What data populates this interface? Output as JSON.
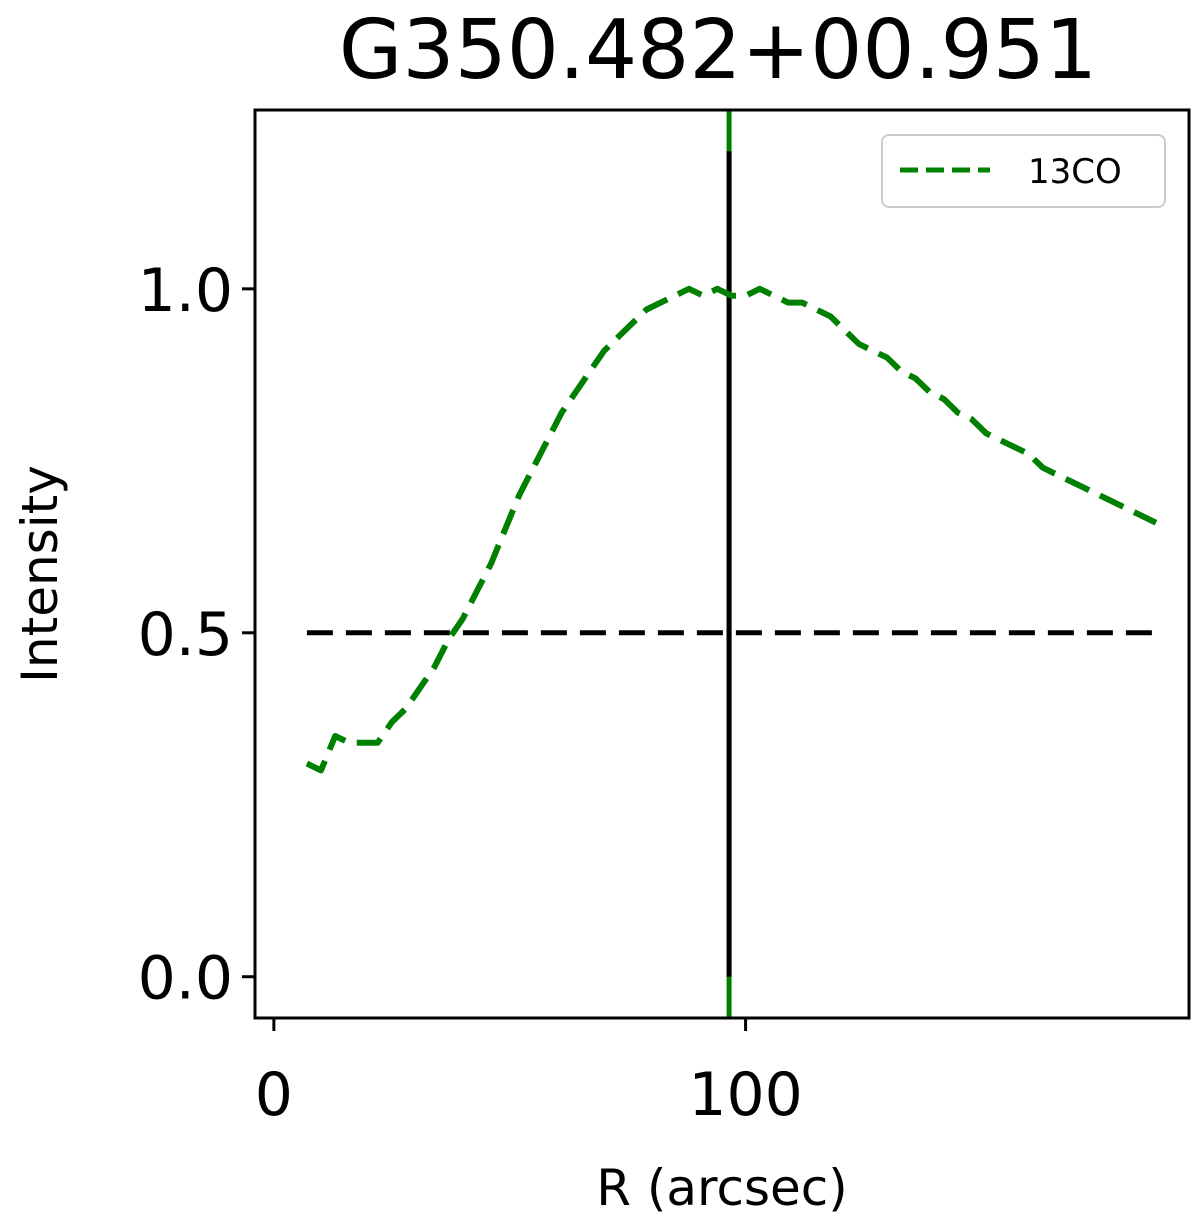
{
  "chart_data": {
    "type": "line",
    "title": "G350.482+00.951",
    "xlabel": "R (arcsec)",
    "ylabel": "Intensity",
    "xlim": [
      -4,
      194
    ],
    "ylim": [
      -0.06,
      1.26
    ],
    "xticks": [
      0,
      100
    ],
    "xtick_labels": [
      "0",
      "100"
    ],
    "yticks": [
      0.0,
      0.5,
      1.0
    ],
    "ytick_labels": [
      "0.0",
      "0.5",
      "1.0"
    ],
    "grid": false,
    "legend": {
      "placement": "top-right",
      "entries": [
        "13CO"
      ]
    },
    "series": [
      {
        "name": "13CO",
        "color": "#008000",
        "style": "dashed",
        "x": [
          7,
          10,
          13,
          16,
          19,
          22,
          25,
          28,
          31,
          34,
          37,
          40,
          43,
          46,
          49,
          52,
          55,
          58,
          61,
          64,
          67,
          70,
          73,
          76,
          79,
          82,
          85,
          88,
          91,
          94,
          97,
          100,
          103,
          106,
          109,
          112,
          115,
          118,
          121,
          124,
          127,
          130,
          133,
          136,
          139,
          142,
          145,
          148,
          151,
          154,
          157,
          160,
          163,
          166,
          169,
          172,
          175,
          178,
          181,
          184,
          187
        ],
        "y": [
          0.31,
          0.3,
          0.35,
          0.34,
          0.34,
          0.34,
          0.37,
          0.39,
          0.42,
          0.45,
          0.49,
          0.52,
          0.56,
          0.6,
          0.65,
          0.7,
          0.74,
          0.78,
          0.82,
          0.85,
          0.88,
          0.91,
          0.93,
          0.95,
          0.97,
          0.98,
          0.99,
          1.0,
          0.99,
          1.0,
          0.99,
          0.99,
          1.0,
          0.99,
          0.98,
          0.98,
          0.97,
          0.96,
          0.94,
          0.92,
          0.91,
          0.9,
          0.88,
          0.87,
          0.85,
          0.84,
          0.82,
          0.81,
          0.79,
          0.78,
          0.77,
          0.76,
          0.74,
          0.73,
          0.72,
          0.71,
          0.7,
          0.69,
          0.68,
          0.67,
          0.66
        ]
      }
    ],
    "reference_lines": [
      {
        "orientation": "horizontal",
        "value": 0.5,
        "color": "#000000",
        "style": "dashed"
      },
      {
        "orientation": "vertical",
        "value": 96.5,
        "color": "#008000",
        "style": "solid"
      },
      {
        "orientation": "vertical",
        "value": 96.5,
        "from": 0.0,
        "to": 1.2,
        "color": "#000000",
        "style": "solid"
      }
    ]
  }
}
